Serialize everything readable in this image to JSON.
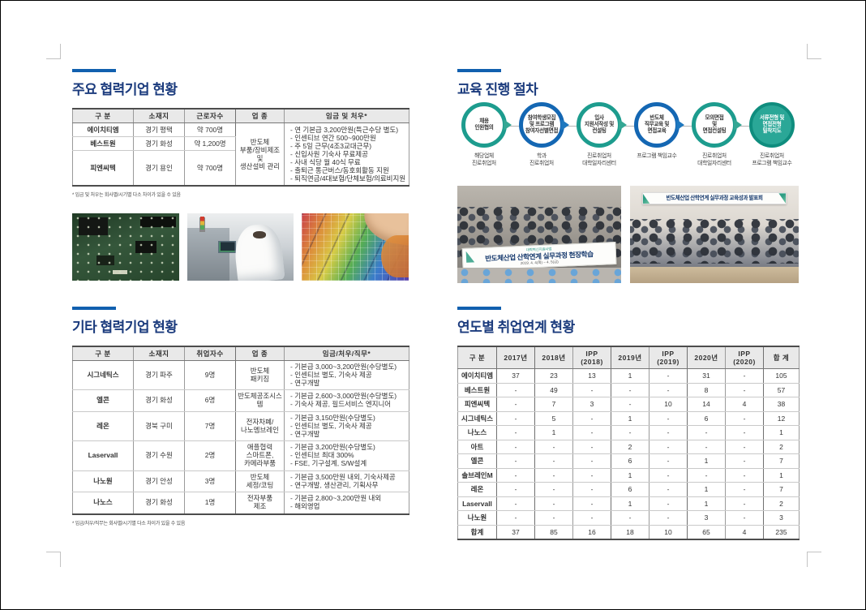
{
  "palette": {
    "title_navy": "#1b3b7d",
    "bar_blue": "#1160af",
    "teal": "#1d9c8e",
    "teal_fill": "#2aa797",
    "blue": "#1467b3",
    "banner_navy": "#173a6e"
  },
  "left": {
    "major": {
      "title": "주요 협력기업 현황",
      "table": {
        "headers": [
          "구 분",
          "소재지",
          "근로자수",
          "업 종",
          "임금 및 처우*"
        ],
        "rows": [
          {
            "name": "에이치티엠",
            "location": "경기 평택",
            "workers": "약 700명"
          },
          {
            "name": "베스트원",
            "location": "경기 화성",
            "workers": "약 1,200명"
          },
          {
            "name": "피엔씨텍",
            "location": "경기 용인",
            "workers": "약 700명"
          }
        ],
        "industry": [
          "반도체",
          "부품/장비제조 및",
          "생산설비 관리"
        ],
        "benefits": [
          "- 연 기본급 3,200만원(특근수당 별도)",
          "- 인센티브 연간 500~900만원",
          "- 주 5일 근무(4조3교대근무)",
          "- 신입사원 기숙사 무료제공",
          "- 사내 식당 월 40식 무료",
          "- 출퇴근 통근버스/동호회활동 지원",
          "- 퇴직연금/4대보험/단체보험/의료비지원"
        ]
      },
      "footnote": "* 임금 및 처우는 회사별/시기별 다소 차이가 있을 수 있음"
    },
    "photos": [
      {
        "name": "pcb-circuit-board-closeup"
      },
      {
        "name": "cleanroom-worker-at-equipment"
      },
      {
        "name": "hands-holding-rainbow-wafer"
      }
    ],
    "other": {
      "title": "기타 협력기업 현황",
      "table": {
        "headers": [
          "구 분",
          "소재지",
          "취업자수",
          "업 종",
          "임금/처우/직무*"
        ],
        "rows": [
          {
            "name": "시그네틱스",
            "location": "경기 파주",
            "hires": "9명",
            "industry": [
              "반도체",
              "패키징"
            ],
            "details": [
              "- 기본급 3,000~3,200만원(수당별도)",
              "- 인센티브 별도, 기숙사 제공",
              "- 연구개발"
            ]
          },
          {
            "name": "엘콘",
            "location": "경기 화성",
            "hires": "6명",
            "industry": [
              "반도체공조시스템"
            ],
            "details": [
              "- 기본급 2,600~3,000만원(수당별도)",
              "- 기숙사 제공, 필드서비스 엔지니어"
            ]
          },
          {
            "name": "레온",
            "location": "경북 구미",
            "hires": "7명",
            "industry": [
              "전자차폐/",
              "나노멤브레인"
            ],
            "details": [
              "- 기본급 3,150만원(수당별도)",
              "- 인센티브 별도, 기숙사 제공",
              "- 연구개발"
            ]
          },
          {
            "name": "Laservall",
            "location": "경기 수원",
            "hires": "2명",
            "industry": [
              "애플협력",
              "스마트폰,",
              "카메라부품"
            ],
            "details": [
              "- 기본급 3,200만원(수당별도)",
              "- 인센티브 최대 300%",
              "- FSE, 기구설계, S/W설계"
            ]
          },
          {
            "name": "나노원",
            "location": "경기 안성",
            "hires": "3명",
            "industry": [
              "반도체",
              "세정/코팅"
            ],
            "details": [
              "- 기본급 3,500만원 내외, 기숙사제공",
              "- 연구개발, 생산관리, 기획사무"
            ]
          },
          {
            "name": "나노스",
            "location": "경기 화성",
            "hires": "1명",
            "industry": [
              "전자부품",
              "제조"
            ],
            "details": [
              "- 기본급 2,800~3,200만원 내외",
              "- 해외영업"
            ]
          }
        ]
      },
      "footnote": "* 임금/처우/직무는 회사별/시기별 다소 차이가 있을 수 있음"
    }
  },
  "right": {
    "process": {
      "title": "교육 진행 절차",
      "steps": [
        {
          "circle": [
            "채용",
            "인원협의"
          ],
          "variant": "teal",
          "label": [
            "해당업체",
            "진로취업처"
          ]
        },
        {
          "circle": [
            "참여학생모집",
            "및 프로그램",
            "참여자선별면접"
          ],
          "variant": "blue",
          "label": [
            "학과",
            "진로취업처"
          ]
        },
        {
          "circle": [
            "입사",
            "지원서작성 및",
            "컨설팅"
          ],
          "variant": "teal",
          "label": [
            "진로취업처",
            "대학일자리센터"
          ]
        },
        {
          "circle": [
            "반도체",
            "직무교육 및",
            "면접교육"
          ],
          "variant": "blue",
          "label": [
            "프로그램 책임교수"
          ]
        },
        {
          "circle": [
            "모의면접",
            "및",
            "면접컨설팅"
          ],
          "variant": "teal",
          "label": [
            "진로취업처",
            "대학일자리센터"
          ]
        },
        {
          "circle": [
            "서류전형 및",
            "면접전형",
            "밀착지도"
          ],
          "variant": "filled",
          "label": [
            "진로취업처",
            "프로그램 책임교수"
          ]
        }
      ]
    },
    "photos": [
      {
        "name": "field-trip-group-photo",
        "banner_top": "대학혁신지원사업",
        "banner": "반도체산업 산학연계 실무과정 현장학습",
        "banner_sub": "2019. 4. 4(목) ~ 4. 5(금)"
      },
      {
        "name": "outcome-presentation-group-photo",
        "banner": "반도체산업 산학연계 실무과정 교육성과 발표회"
      }
    ],
    "linkage": {
      "title": "연도별 취업연계 현황",
      "table": {
        "headers": [
          "구 분",
          "2017년",
          "2018년",
          "IPP (2018)",
          "2019년",
          "IPP (2019)",
          "2020년",
          "IPP (2020)",
          "합 계"
        ],
        "rows": [
          {
            "label": "에이치티엠",
            "values": [
              "37",
              "23",
              "13",
              "1",
              "-",
              "31",
              "-",
              "105"
            ]
          },
          {
            "label": "베스트원",
            "values": [
              "-",
              "49",
              "-",
              "-",
              "-",
              "8",
              "-",
              "57"
            ]
          },
          {
            "label": "피엔씨텍",
            "values": [
              "-",
              "7",
              "3",
              "-",
              "10",
              "14",
              "4",
              "38"
            ]
          },
          {
            "label": "시그네틱스",
            "values": [
              "-",
              "5",
              "-",
              "1",
              "-",
              "6",
              "-",
              "12"
            ]
          },
          {
            "label": "나노스",
            "values": [
              "-",
              "1",
              "-",
              "-",
              "-",
              "-",
              "-",
              "1"
            ]
          },
          {
            "label": "아트",
            "values": [
              "-",
              "-",
              "-",
              "2",
              "-",
              "-",
              "-",
              "2"
            ]
          },
          {
            "label": "엘콘",
            "values": [
              "-",
              "-",
              "-",
              "6",
              "-",
              "1",
              "-",
              "7"
            ]
          },
          {
            "label": "솔브레인M",
            "values": [
              "-",
              "-",
              "-",
              "1",
              "-",
              "-",
              "-",
              "1"
            ]
          },
          {
            "label": "레온",
            "values": [
              "-",
              "-",
              "-",
              "6",
              "-",
              "1",
              "-",
              "7"
            ]
          },
          {
            "label": "Laservall",
            "values": [
              "-",
              "-",
              "-",
              "1",
              "-",
              "1",
              "-",
              "2"
            ]
          },
          {
            "label": "나노원",
            "values": [
              "-",
              "-",
              "-",
              "-",
              "-",
              "3",
              "-",
              "3"
            ]
          },
          {
            "label": "합계",
            "values": [
              "37",
              "85",
              "16",
              "18",
              "10",
              "65",
              "4",
              "235"
            ]
          }
        ]
      }
    }
  }
}
